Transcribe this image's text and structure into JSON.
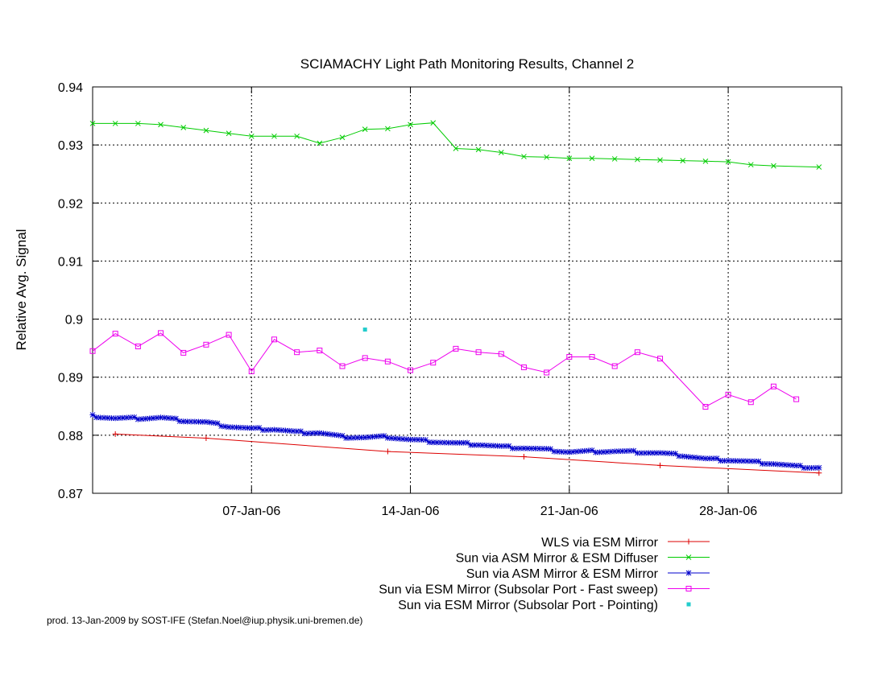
{
  "chart_data": {
    "type": "line",
    "title": "SCIAMACHY Light Path Monitoring Results, Channel 2",
    "ylabel": "Relative Avg. Signal",
    "xlabel": "",
    "xlim": [
      "2005-12-31",
      "2006-02-02"
    ],
    "ylim": [
      0.87,
      0.94
    ],
    "yticks": [
      "0.87",
      "0.88",
      "0.89",
      "0.9",
      "0.91",
      "0.92",
      "0.93",
      "0.94"
    ],
    "xticks": [
      {
        "date": "2006-01-07",
        "label": "07-Jan-06"
      },
      {
        "date": "2006-01-14",
        "label": "14-Jan-06"
      },
      {
        "date": "2006-01-21",
        "label": "21-Jan-06"
      },
      {
        "date": "2006-01-28",
        "label": "28-Jan-06"
      }
    ],
    "grid": true,
    "legend_position": "bottom",
    "series": [
      {
        "name": "WLS via ESM Mirror",
        "color": "#dd0000",
        "marker": "plus",
        "points": [
          [
            "2006-01-01",
            0.8802
          ],
          [
            "2006-01-05",
            0.8795
          ],
          [
            "2006-01-13",
            0.8772
          ],
          [
            "2006-01-19",
            0.8763
          ],
          [
            "2006-01-25",
            0.8748
          ],
          [
            "2006-02-01",
            0.8735
          ]
        ]
      },
      {
        "name": "Sun via ASM Mirror & ESM Diffuser",
        "color": "#00cc00",
        "marker": "cross",
        "points": [
          [
            "2005-12-31",
            0.9337
          ],
          [
            "2006-01-01",
            0.9337
          ],
          [
            "2006-01-02",
            0.9337
          ],
          [
            "2006-01-03",
            0.9335
          ],
          [
            "2006-01-04",
            0.933
          ],
          [
            "2006-01-05",
            0.9325
          ],
          [
            "2006-01-06",
            0.932
          ],
          [
            "2006-01-07",
            0.9315
          ],
          [
            "2006-01-08",
            0.9315
          ],
          [
            "2006-01-09",
            0.9315
          ],
          [
            "2006-01-10",
            0.9303
          ],
          [
            "2006-01-11",
            0.9313
          ],
          [
            "2006-01-12",
            0.9327
          ],
          [
            "2006-01-13",
            0.9328
          ],
          [
            "2006-01-14",
            0.9335
          ],
          [
            "2006-01-15",
            0.9338
          ],
          [
            "2006-01-16",
            0.9294
          ],
          [
            "2006-01-17",
            0.9292
          ],
          [
            "2006-01-18",
            0.9287
          ],
          [
            "2006-01-19",
            0.928
          ],
          [
            "2006-01-20",
            0.9279
          ],
          [
            "2006-01-21",
            0.9277
          ],
          [
            "2006-01-22",
            0.9277
          ],
          [
            "2006-01-23",
            0.9276
          ],
          [
            "2006-01-24",
            0.9275
          ],
          [
            "2006-01-25",
            0.9274
          ],
          [
            "2006-01-26",
            0.9273
          ],
          [
            "2006-01-27",
            0.9272
          ],
          [
            "2006-01-28",
            0.9271
          ],
          [
            "2006-01-29",
            0.9266
          ],
          [
            "2006-01-30",
            0.9264
          ],
          [
            "2006-02-01",
            0.9262
          ]
        ]
      },
      {
        "name": "Sun via ASM Mirror & ESM Mirror",
        "color": "#0000cc",
        "marker": "star",
        "points": [
          [
            "2005-12-31",
            0.8833
          ],
          [
            "2006-01-01",
            0.8829
          ],
          [
            "2006-01-02",
            0.8829
          ],
          [
            "2006-01-03",
            0.883
          ],
          [
            "2006-01-04",
            0.8825
          ],
          [
            "2006-01-05",
            0.8822
          ],
          [
            "2006-01-06",
            0.8815
          ],
          [
            "2006-01-07",
            0.8811
          ],
          [
            "2006-01-08",
            0.881
          ],
          [
            "2006-01-09",
            0.8805
          ],
          [
            "2006-01-10",
            0.8804
          ],
          [
            "2006-01-11",
            0.8797
          ],
          [
            "2006-01-12",
            0.8796
          ],
          [
            "2006-01-13",
            0.8797
          ],
          [
            "2006-01-14",
            0.8792
          ],
          [
            "2006-01-15",
            0.8789
          ],
          [
            "2006-01-16",
            0.8786
          ],
          [
            "2006-01-17",
            0.8784
          ],
          [
            "2006-01-18",
            0.878
          ],
          [
            "2006-01-19",
            0.8778
          ],
          [
            "2006-01-20",
            0.8775
          ],
          [
            "2006-01-21",
            0.8771
          ],
          [
            "2006-01-22",
            0.8772
          ],
          [
            "2006-01-23",
            0.8772
          ],
          [
            "2006-01-24",
            0.8771
          ],
          [
            "2006-01-25",
            0.8769
          ],
          [
            "2006-01-26",
            0.8765
          ],
          [
            "2006-01-27",
            0.8759
          ],
          [
            "2006-01-28",
            0.8757
          ],
          [
            "2006-01-29",
            0.8754
          ],
          [
            "2006-01-30",
            0.8751
          ],
          [
            "2006-01-31",
            0.8746
          ],
          [
            "2006-02-01",
            0.8744
          ]
        ]
      },
      {
        "name": "Sun via ESM Mirror (Subsolar Port - Fast sweep)",
        "color": "#ee00ee",
        "marker": "square",
        "points": [
          [
            "2005-12-31",
            0.8945
          ],
          [
            "2006-01-01",
            0.8975
          ],
          [
            "2006-01-02",
            0.8953
          ],
          [
            "2006-01-03",
            0.8976
          ],
          [
            "2006-01-04",
            0.8942
          ],
          [
            "2006-01-05",
            0.8956
          ],
          [
            "2006-01-06",
            0.8973
          ],
          [
            "2006-01-07",
            0.891
          ],
          [
            "2006-01-08",
            0.8965
          ],
          [
            "2006-01-09",
            0.8943
          ],
          [
            "2006-01-10",
            0.8946
          ],
          [
            "2006-01-11",
            0.8919
          ],
          [
            "2006-01-12",
            0.8933
          ],
          [
            "2006-01-13",
            0.8927
          ],
          [
            "2006-01-14",
            0.8912
          ],
          [
            "2006-01-15",
            0.8925
          ],
          [
            "2006-01-16",
            0.8949
          ],
          [
            "2006-01-17",
            0.8943
          ],
          [
            "2006-01-18",
            0.894
          ],
          [
            "2006-01-19",
            0.8917
          ],
          [
            "2006-01-20",
            0.8908
          ],
          [
            "2006-01-21",
            0.8935
          ],
          [
            "2006-01-22",
            0.8935
          ],
          [
            "2006-01-23",
            0.8919
          ],
          [
            "2006-01-24",
            0.8943
          ],
          [
            "2006-01-25",
            0.8932
          ],
          [
            "2006-01-27",
            0.8849
          ],
          [
            "2006-01-28",
            0.887
          ],
          [
            "2006-01-29",
            0.8857
          ],
          [
            "2006-01-30",
            0.8884
          ],
          [
            "2006-01-31",
            0.8862
          ]
        ]
      },
      {
        "name": "Sun via ESM Mirror (Subsolar Port - Pointing)",
        "color": "#22cccc",
        "marker": "filled-square",
        "points": [
          [
            "2006-01-12",
            0.8982
          ]
        ]
      }
    ]
  },
  "credit": "prod. 13-Jan-2009 by SOST-IFE (Stefan.Noel@iup.physik.uni-bremen.de)"
}
